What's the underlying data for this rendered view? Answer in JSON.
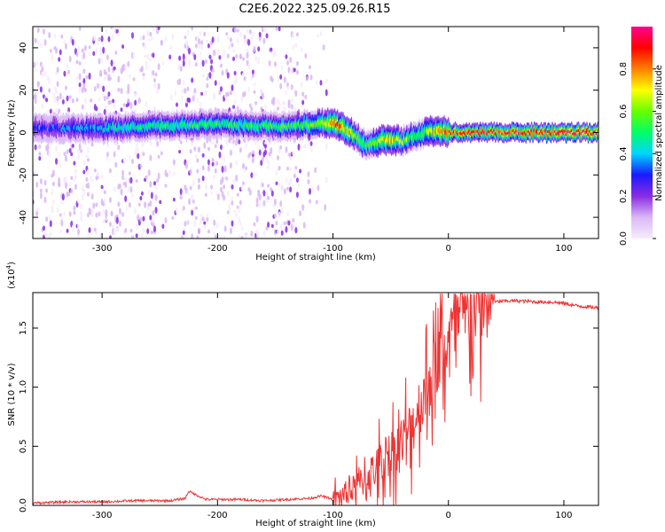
{
  "title": "C2E6.2022.325.09.26.R15",
  "chart_data": [
    {
      "type": "heatmap",
      "panel": "top",
      "xlabel": "Height of straight line (km)",
      "ylabel": "Frequency (Hz)",
      "xlim": [
        -360,
        130
      ],
      "ylim": [
        -50,
        50
      ],
      "xticks": [
        -300,
        -200,
        -100,
        0,
        100
      ],
      "xtick_labels": [
        "-300",
        "-200",
        "-100",
        "0",
        "100"
      ],
      "yticks": [
        -40,
        -20,
        0,
        20,
        40
      ],
      "ytick_labels": [
        "-40",
        "-20",
        "0",
        "20",
        "40"
      ],
      "colorbar": {
        "label": "Normalized spectral amplitude",
        "range": [
          0,
          1
        ],
        "ticks": [
          0.0,
          0.2,
          0.4,
          0.6,
          0.8
        ],
        "tick_labels": [
          "0.0",
          "0.2",
          "0.4",
          "0.6",
          "0.8"
        ],
        "colors": [
          "#f6edfb",
          "#d9b8f5",
          "#8a2be2",
          "#1a1aff",
          "#00d5ff",
          "#00ff66",
          "#66ff00",
          "#ffff00",
          "#ff8000",
          "#ff0000",
          "#ff0090"
        ]
      },
      "ridge": {
        "x": [
          -360,
          -300,
          -250,
          -200,
          -150,
          -110,
          -100,
          -90,
          -80,
          -70,
          -60,
          -50,
          -40,
          -30,
          -20,
          -10,
          0,
          50,
          100,
          130
        ],
        "y": [
          2,
          2,
          3,
          4,
          3,
          4,
          4,
          2,
          -2,
          -6,
          -4,
          -3,
          -4,
          -2,
          0,
          1,
          0,
          0,
          0,
          0
        ],
        "amplitude": [
          0.3,
          0.4,
          0.5,
          0.5,
          0.5,
          0.6,
          0.85,
          0.8,
          0.6,
          0.5,
          0.7,
          0.8,
          0.6,
          0.55,
          0.6,
          0.75,
          0.85,
          0.9,
          0.95,
          0.95
        ]
      }
    },
    {
      "type": "line",
      "panel": "bottom",
      "xlabel": "Height of straight line (km)",
      "ylabel": "SNR (10 * v/v)",
      "y_multiplier": "(x10",
      "y_multiplier_exp": "4",
      "y_multiplier_close": ")",
      "xlim": [
        -360,
        130
      ],
      "ylim": [
        0,
        1.8
      ],
      "xticks": [
        -300,
        -200,
        -100,
        0,
        100
      ],
      "xtick_labels": [
        "-300",
        "-200",
        "-100",
        "0",
        "100"
      ],
      "yticks": [
        0,
        0.5,
        1.0,
        1.5
      ],
      "ytick_labels": [
        "0.0",
        "0.5",
        "1.0",
        "1.5"
      ],
      "color": "#ee3333",
      "series": [
        {
          "x": [
            -360,
            -330,
            -300,
            -270,
            -240,
            -228,
            -225,
            -210,
            -180,
            -160,
            -140,
            -120,
            -115,
            -110,
            -100,
            -90,
            -80,
            -70,
            -60,
            -50,
            -40,
            -30,
            -25,
            -20,
            -15,
            -10,
            -5,
            0,
            10,
            20,
            30,
            40,
            50,
            60,
            80,
            90,
            100,
            110,
            120,
            130
          ],
          "y": [
            0.02,
            0.03,
            0.03,
            0.04,
            0.04,
            0.06,
            0.12,
            0.05,
            0.05,
            0.04,
            0.05,
            0.06,
            0.07,
            0.08,
            0.05,
            0.1,
            0.15,
            0.25,
            0.35,
            0.45,
            0.55,
            0.7,
            0.85,
            0.95,
            1.05,
            1.2,
            1.3,
            1.4,
            1.55,
            1.64,
            1.69,
            1.72,
            1.73,
            1.73,
            1.72,
            1.72,
            1.71,
            1.69,
            1.68,
            1.67
          ]
        }
      ]
    }
  ]
}
